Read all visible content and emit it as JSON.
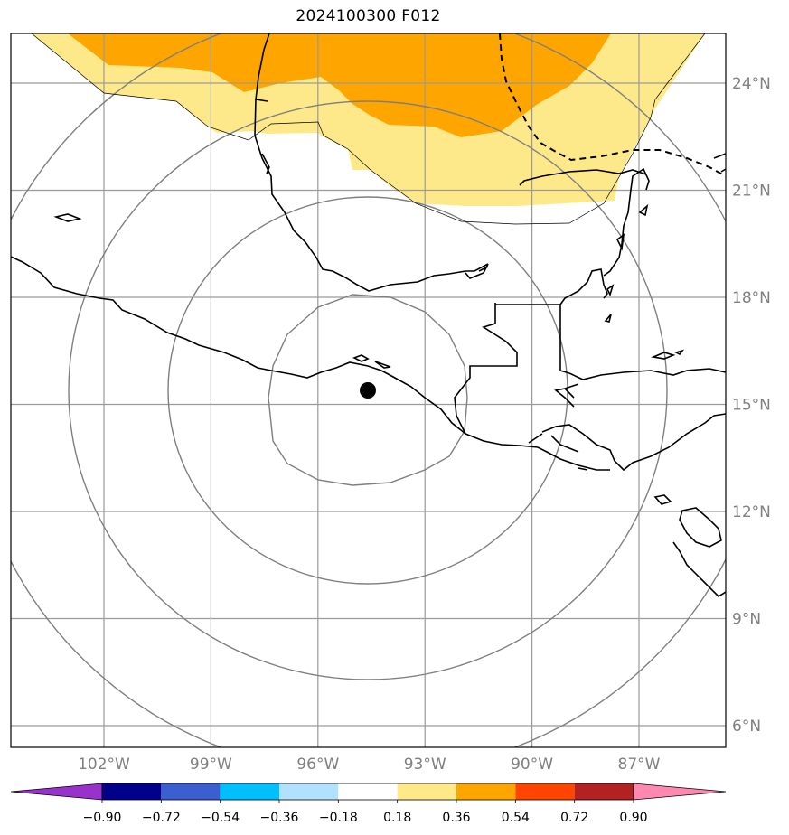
{
  "title": "2024100300 F012",
  "map": {
    "lon_labels": [
      "102°W",
      "99°W",
      "96°W",
      "93°W",
      "90°W",
      "87°W"
    ],
    "lat_labels": [
      "24°N",
      "21°N",
      "18°N",
      "15°N",
      "12°N",
      "9°N",
      "6°N"
    ],
    "lon_values": [
      -102,
      -99,
      -96,
      -93,
      -90,
      -87
    ],
    "lat_values": [
      24,
      21,
      18,
      15,
      12,
      9,
      6
    ],
    "center_marker": {
      "lon": -94.6,
      "lat": 15.4
    },
    "range_rings_count": 4,
    "colors": {
      "gridline": "#9a9a9a",
      "ring": "#7f7f7f",
      "coast": "#000000",
      "shade_low": "#fde98a",
      "shade_high": "#ffa500"
    }
  },
  "colorbar": {
    "tick_labels": [
      "−0.90",
      "−0.72",
      "−0.54",
      "−0.36",
      "−0.18",
      "0.18",
      "0.36",
      "0.54",
      "0.72",
      "0.90"
    ],
    "colors": [
      "#9932cc",
      "#00008b",
      "#3b5fd0",
      "#00bfff",
      "#b0e2ff",
      "#ffffff",
      "#ffe989",
      "#ffa500",
      "#ff4500",
      "#b22222",
      "#ff88b0"
    ]
  }
}
